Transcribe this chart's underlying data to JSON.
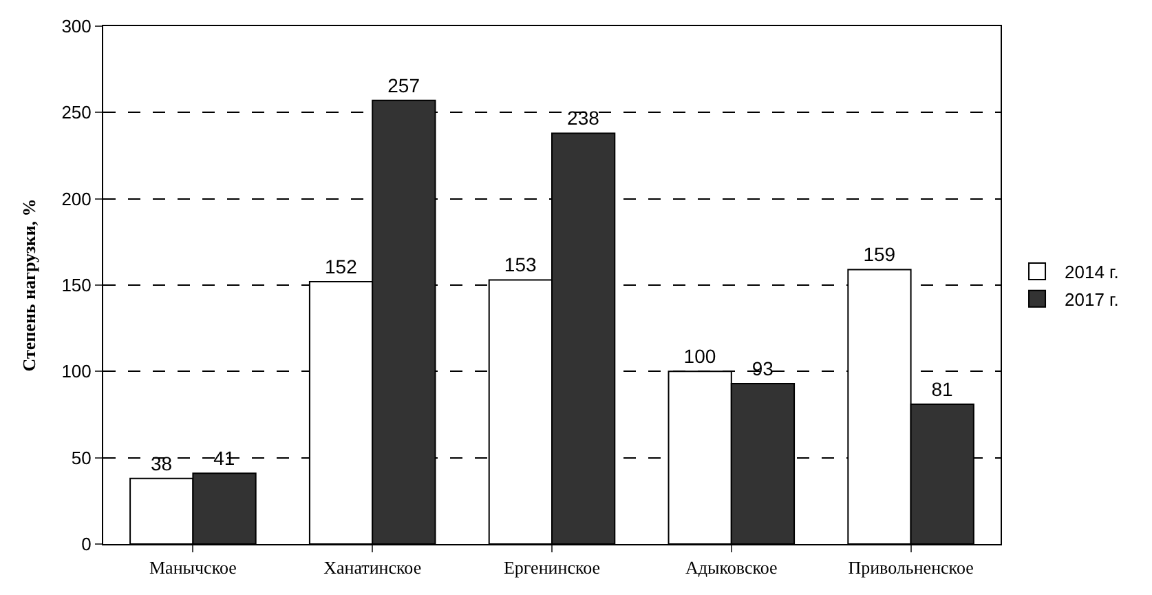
{
  "chart_data": {
    "type": "bar",
    "ylabel": "Степень нагрузки, %",
    "categories": [
      "Манычское",
      "Ханатинское",
      "Ергенинское",
      "Адыковское",
      "Привольненское"
    ],
    "series": [
      {
        "name": "2014 г.",
        "color": "#ffffff",
        "values": [
          38,
          152,
          153,
          100,
          159
        ]
      },
      {
        "name": "2017 г.",
        "color": "#333333",
        "values": [
          41,
          257,
          238,
          93,
          81
        ]
      }
    ],
    "ylim": [
      0,
      300
    ],
    "yticks": [
      0,
      50,
      100,
      150,
      200,
      250,
      300
    ],
    "grid": "y",
    "legend": "right",
    "data_labels": true
  }
}
